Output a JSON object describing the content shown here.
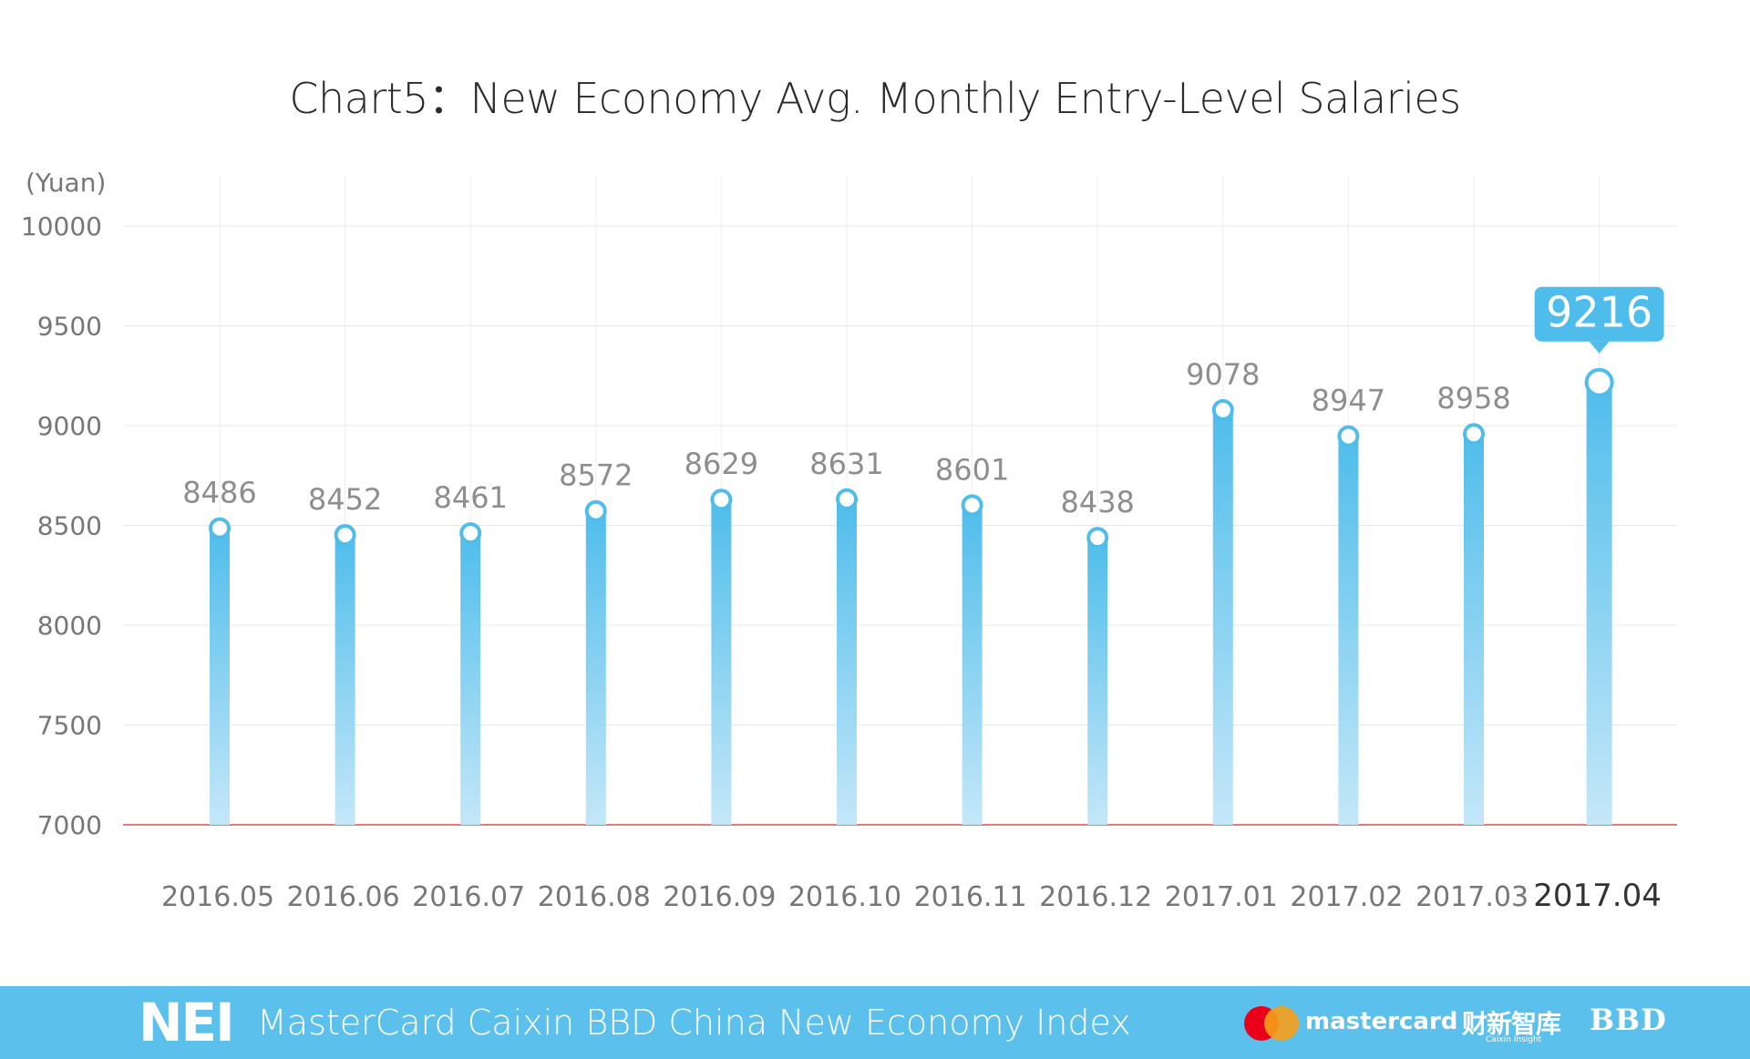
{
  "chart_data": {
    "type": "bar",
    "title": "Chart5：New Economy Avg. Monthly Entry-Level Salaries",
    "ylabel": "(Yuan)",
    "xlabel": "",
    "ylim": [
      7000,
      10000
    ],
    "yticks": [
      "7000",
      "7500",
      "8000",
      "8500",
      "9000",
      "9500",
      "10000"
    ],
    "grid": true,
    "categories": [
      "2016.05",
      "2016.06",
      "2016.07",
      "2016.08",
      "2016.09",
      "2016.10",
      "2016.11",
      "2016.12",
      "2017.01",
      "2017.02",
      "2017.03",
      "2017.04"
    ],
    "values": [
      8486,
      8452,
      8461,
      8572,
      8629,
      8631,
      8601,
      8438,
      9078,
      8947,
      8958,
      9216
    ],
    "highlight_index": 11,
    "colors": {
      "bar_top": "#4fbdeb",
      "bar_bottom": "#bfe5f7",
      "baseline": "#d9534f",
      "highlight_bg": "#4fbdeb"
    }
  },
  "footer": {
    "logo": "NEI",
    "text": "MasterCard Caixin BBD China New Economy Index",
    "mastercard": "mastercard",
    "caixin": "财新智库",
    "caixin_sub": "Caixin Insight",
    "bbd": "BBD"
  }
}
